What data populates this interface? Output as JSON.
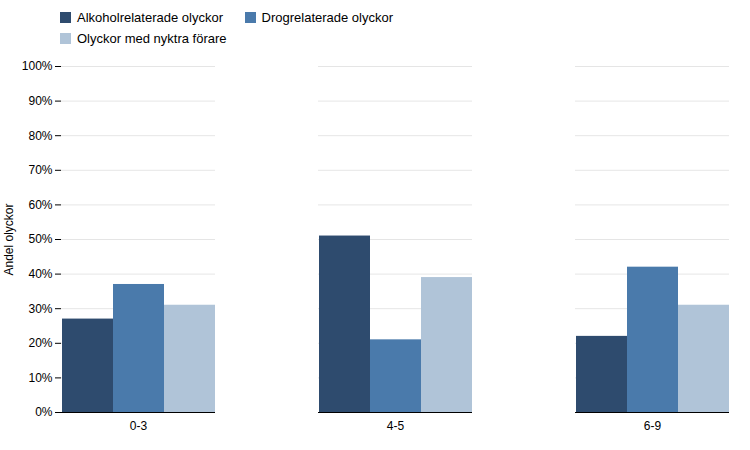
{
  "chart_data": {
    "type": "bar",
    "categories": [
      "0-3",
      "4-5",
      "6-9"
    ],
    "series": [
      {
        "name": "Alkoholrelaterade olyckor",
        "color": "#2E4B6E",
        "values": [
          0.27,
          0.51,
          0.22
        ]
      },
      {
        "name": "Drogrelaterade olyckor",
        "color": "#4A7AAB",
        "values": [
          0.37,
          0.21,
          0.42
        ]
      },
      {
        "name": "Olyckor med nyktra förare",
        "color": "#B0C4D8",
        "values": [
          0.31,
          0.39,
          0.31
        ]
      }
    ],
    "ylabel": "Andel olyckor",
    "ylim": [
      0,
      1.0
    ],
    "yticks": [
      {
        "value": 0,
        "label": "0%"
      },
      {
        "value": 0.1,
        "label": "10%"
      },
      {
        "value": 0.2,
        "label": "20%"
      },
      {
        "value": 0.3,
        "label": "30%"
      },
      {
        "value": 0.4,
        "label": "40%"
      },
      {
        "value": 0.5,
        "label": "50%"
      },
      {
        "value": 0.6,
        "label": "60%"
      },
      {
        "value": 0.7,
        "label": "70%"
      },
      {
        "value": 0.8,
        "label": "80%"
      },
      {
        "value": 0.9,
        "label": "90%"
      },
      {
        "value": 1.0,
        "label": "100%"
      }
    ],
    "grid": true,
    "legend": "upper left"
  }
}
